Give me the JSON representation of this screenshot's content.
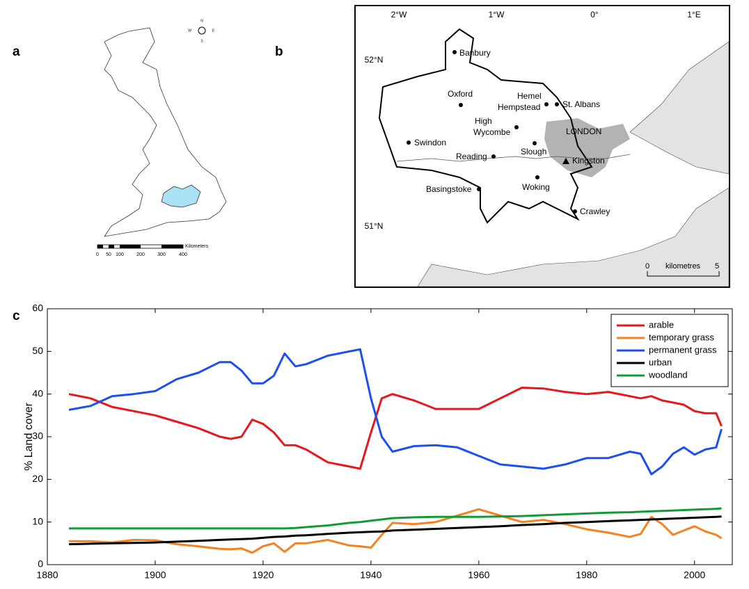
{
  "panel_labels": [
    "a",
    "b",
    "c"
  ],
  "map_a": {
    "compass": [
      "N",
      "E",
      "S",
      "W"
    ],
    "scale_title": "Kilometers",
    "scale_labels": [
      "0",
      "50",
      "100",
      "200",
      "300",
      "400"
    ]
  },
  "map_b": {
    "lon_labels": [
      "2°W",
      "1°W",
      "0°",
      "1°E"
    ],
    "lat_labels": [
      "52°N",
      "51°N"
    ],
    "region": "LONDON",
    "towns": [
      "Banbury",
      "Oxford",
      "St. Albans",
      "Swindon",
      "Slough",
      "Reading",
      "Kingston",
      "Woking",
      "Basingstoke",
      "Crawley"
    ],
    "hemel": [
      "Hemel",
      "Hempstead"
    ],
    "wycombe": [
      "High",
      "Wycombe"
    ],
    "scale_title": "kilometres",
    "scale_labels": [
      "0",
      "5"
    ]
  },
  "chart_data": {
    "type": "line",
    "y_label": "% Land cover",
    "x": [
      1884,
      1888,
      1892,
      1896,
      1900,
      1904,
      1908,
      1912,
      1914,
      1916,
      1918,
      1920,
      1922,
      1924,
      1926,
      1928,
      1932,
      1936,
      1938,
      1940,
      1942,
      1944,
      1948,
      1952,
      1956,
      1960,
      1964,
      1968,
      1972,
      1976,
      1980,
      1984,
      1988,
      1990,
      1992,
      1994,
      1996,
      1998,
      2000,
      2002,
      2004,
      2005
    ],
    "series": [
      {
        "name": "arable",
        "color": "#e8171c",
        "values": [
          40,
          39,
          37,
          36,
          35,
          33.5,
          32,
          30,
          29.5,
          30,
          34,
          33,
          31,
          28,
          28,
          27,
          24,
          23,
          22.5,
          31,
          39,
          40,
          38.5,
          36.5,
          36.5,
          36.5,
          39,
          41.5,
          41.3,
          40.5,
          40,
          40.5,
          39.5,
          39,
          39.5,
          38.5,
          38,
          37.5,
          36,
          35.5,
          35.5,
          32.5
        ]
      },
      {
        "name": "temporary grass",
        "color": "#f58220",
        "values": [
          5.5,
          5.5,
          5.2,
          5.8,
          5.7,
          4.8,
          4.3,
          3.7,
          3.6,
          3.8,
          2.8,
          4.3,
          5,
          3,
          5,
          5,
          5.8,
          4.5,
          4.3,
          4,
          7,
          9.8,
          9.5,
          10,
          11.5,
          13,
          11.5,
          10,
          10.5,
          9.5,
          8.3,
          7.5,
          6.5,
          7.2,
          11.2,
          9.5,
          7,
          8,
          9,
          7.8,
          7,
          6.2
        ]
      },
      {
        "name": "permanent grass",
        "color": "#1d4ff0",
        "values": [
          36.3,
          37.2,
          39.5,
          40,
          40.7,
          43.5,
          45,
          47.5,
          47.5,
          45.5,
          42.5,
          42.5,
          44.3,
          49.5,
          46.5,
          47,
          49,
          50,
          50.5,
          39,
          30,
          26.5,
          27.8,
          28,
          27.5,
          25.5,
          23.5,
          23,
          22.5,
          23.5,
          25,
          25,
          26.5,
          26,
          21.2,
          23,
          26,
          27.5,
          25.8,
          27,
          27.5,
          31.8
        ]
      },
      {
        "name": "urban",
        "color": "#000000",
        "values": [
          4.8,
          4.9,
          5.0,
          5.1,
          5.2,
          5.4,
          5.6,
          5.8,
          5.9,
          6.0,
          6.1,
          6.3,
          6.5,
          6.6,
          6.8,
          6.9,
          7.2,
          7.5,
          7.6,
          7.7,
          7.8,
          8.0,
          8.2,
          8.4,
          8.6,
          8.8,
          9.0,
          9.3,
          9.5,
          9.8,
          10.0,
          10.2,
          10.4,
          10.5,
          10.6,
          10.7,
          10.8,
          10.9,
          11.0,
          11.1,
          11.2,
          11.3
        ]
      },
      {
        "name": "woodland",
        "color": "#119b36",
        "values": [
          8.5,
          8.5,
          8.5,
          8.5,
          8.5,
          8.5,
          8.5,
          8.5,
          8.5,
          8.5,
          8.5,
          8.5,
          8.5,
          8.5,
          8.6,
          8.8,
          9.2,
          9.8,
          10.0,
          10.3,
          10.6,
          10.9,
          11.1,
          11.2,
          11.2,
          11.2,
          11.3,
          11.4,
          11.6,
          11.8,
          12.0,
          12.2,
          12.3,
          12.4,
          12.5,
          12.6,
          12.7,
          12.8,
          12.9,
          13.0,
          13.1,
          13.2
        ]
      }
    ],
    "xlim": [
      1880,
      2007
    ],
    "xticks": [
      1880,
      1900,
      1920,
      1940,
      1960,
      1980,
      2000
    ],
    "ylim": [
      0,
      60
    ],
    "yticks": [
      0,
      10,
      20,
      30,
      40,
      50,
      60
    ],
    "legend": "upper right"
  }
}
